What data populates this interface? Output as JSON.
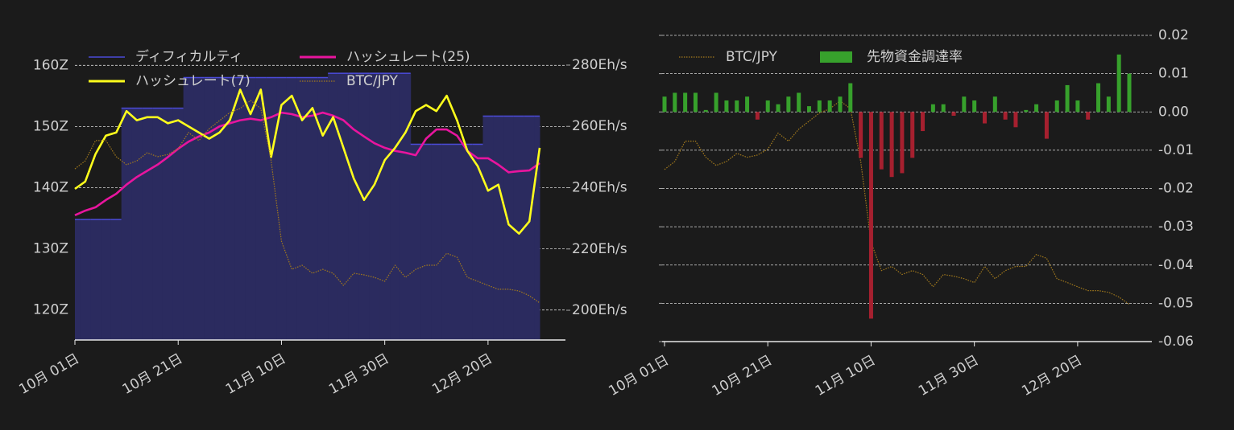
{
  "chart_data": [
    {
      "type": "line",
      "y_axis_side": "left",
      "grid": true,
      "x": [
        "10-01",
        "10-03",
        "10-05",
        "10-07",
        "10-09",
        "10-11",
        "10-13",
        "10-15",
        "10-17",
        "10-19",
        "10-21",
        "10-23",
        "10-25",
        "10-27",
        "10-29",
        "10-31",
        "11-02",
        "11-04",
        "11-06",
        "11-08",
        "11-10",
        "11-12",
        "11-14",
        "11-16",
        "11-18",
        "11-20",
        "11-22",
        "11-24",
        "11-26",
        "11-28",
        "11-30",
        "12-02",
        "12-04",
        "12-06",
        "12-08",
        "12-10",
        "12-12",
        "12-14",
        "12-16",
        "12-18",
        "12-20",
        "12-22",
        "12-24",
        "12-26",
        "12-28",
        "12-30"
      ],
      "xticks": [
        {
          "value": "10-01",
          "label": "10月 01日"
        },
        {
          "value": "10-21",
          "label": "10月 21日"
        },
        {
          "value": "11-10",
          "label": "11月 10日"
        },
        {
          "value": "11-30",
          "label": "11月 30日"
        },
        {
          "value": "12-20",
          "label": "12月 20日"
        }
      ],
      "ylim": [
        115.1,
        164.9
      ],
      "yticks": [
        {
          "value": 120,
          "label": "120Z"
        },
        {
          "value": 130,
          "label": "130Z"
        },
        {
          "value": 140,
          "label": "140Z"
        },
        {
          "value": 150,
          "label": "150Z"
        },
        {
          "value": 160,
          "label": "160Z"
        }
      ],
      "y2lim": [
        190.3,
        289.7
      ],
      "y2ticks": [
        {
          "value": 200,
          "label": "200Eh/s"
        },
        {
          "value": 220,
          "label": "220Eh/s"
        },
        {
          "value": 240,
          "label": "240Eh/s"
        },
        {
          "value": 260,
          "label": "260Eh/s"
        },
        {
          "value": 280,
          "label": "280Eh/s"
        }
      ],
      "y3lim": [
        2000000,
        3100000
      ],
      "series": [
        {
          "name": "ディフィカルティ",
          "type": "step-area",
          "axis": "y",
          "color": "#4b4bd8",
          "fill": "#2b2b5f",
          "values": [
            134.8,
            134.8,
            134.8,
            134.8,
            134.8,
            153,
            153,
            153,
            153,
            153,
            153,
            158,
            158,
            158,
            158,
            158,
            158,
            158,
            158,
            158,
            158,
            158,
            158,
            158,
            158,
            158.7,
            158.7,
            158.7,
            158.7,
            158.7,
            158.7,
            158.7,
            158.7,
            147.1,
            147.1,
            147.1,
            147.1,
            147.1,
            147.1,
            147.1,
            151.7,
            151.7,
            151.7,
            151.7,
            151.7,
            151.7
          ]
        },
        {
          "name": "ハッシュレート(25)",
          "type": "line",
          "axis": "y2",
          "color": "#e8159e",
          "values": [
            231,
            232.5,
            233.6,
            236,
            238,
            241,
            243.5,
            245.5,
            247.5,
            250,
            252.7,
            255,
            256.7,
            258,
            260,
            261,
            262,
            262.5,
            262,
            263,
            264.5,
            264,
            263,
            263.5,
            264.5,
            263.5,
            262,
            259,
            256.7,
            254.5,
            253,
            252,
            251.4,
            250.6,
            256,
            259,
            259,
            257,
            252,
            249.6,
            249.6,
            247.5,
            245,
            245.4,
            245.6,
            248
          ]
        },
        {
          "name": "ハッシュレート(7)",
          "type": "line",
          "axis": "y2",
          "color": "#ffff1c",
          "values": [
            239.6,
            242,
            251,
            257,
            258,
            265,
            262,
            263,
            263,
            261,
            262,
            260,
            258,
            256,
            258,
            262,
            272,
            264,
            272,
            250,
            267,
            270,
            262,
            266,
            257,
            263,
            253,
            243,
            236,
            241,
            249,
            253,
            258,
            265,
            267,
            265,
            270,
            262,
            252,
            247,
            239,
            241,
            228,
            225,
            229,
            253
          ]
        },
        {
          "name": "BTC/JPY",
          "type": "line",
          "axis": "y3",
          "color": "#a37a1c",
          "dashed": true,
          "values": [
            2618000,
            2647000,
            2720000,
            2720000,
            2662000,
            2633000,
            2647000,
            2676000,
            2662000,
            2670000,
            2691000,
            2749000,
            2720000,
            2763000,
            2792000,
            2821000,
            2836000,
            2865000,
            2836000,
            2647000,
            2357000,
            2255000,
            2270000,
            2241000,
            2255000,
            2241000,
            2197000,
            2241000,
            2235000,
            2226000,
            2212000,
            2270000,
            2226000,
            2255000,
            2270000,
            2270000,
            2313000,
            2299000,
            2226000,
            2212000,
            2197000,
            2183000,
            2183000,
            2177000,
            2160000,
            2134000
          ]
        }
      ]
    },
    {
      "type": "bar",
      "y_axis_side": "right",
      "grid": true,
      "x": [
        "10-01",
        "10-03",
        "10-05",
        "10-07",
        "10-09",
        "10-11",
        "10-13",
        "10-15",
        "10-17",
        "10-19",
        "10-21",
        "10-23",
        "10-25",
        "10-27",
        "10-29",
        "10-31",
        "11-02",
        "11-04",
        "11-06",
        "11-08",
        "11-10",
        "11-12",
        "11-14",
        "11-16",
        "11-18",
        "11-20",
        "11-22",
        "11-24",
        "11-26",
        "11-28",
        "11-30",
        "12-02",
        "12-04",
        "12-06",
        "12-08",
        "12-10",
        "12-12",
        "12-14",
        "12-16",
        "12-18",
        "12-20",
        "12-22",
        "12-24",
        "12-26",
        "12-28",
        "12-30"
      ],
      "xticks": [
        {
          "value": "10-01",
          "label": "10月 01日"
        },
        {
          "value": "10-21",
          "label": "10月 21日"
        },
        {
          "value": "11-10",
          "label": "11月 10日"
        },
        {
          "value": "11-30",
          "label": "11月 30日"
        },
        {
          "value": "12-20",
          "label": "12月 20日"
        }
      ],
      "ylim": [
        -0.06,
        0.02
      ],
      "yticks": [
        0.02,
        0.01,
        {
          "value": 0,
          "label": "0.00"
        },
        -0.01,
        -0.02,
        -0.03,
        -0.04,
        -0.05,
        -0.06
      ],
      "y3lim": [
        2000000,
        3100000
      ],
      "series": [
        {
          "name": "BTC/JPY",
          "type": "line",
          "axis": "y3",
          "color": "#a37a1c",
          "dashed": true,
          "values": [
            2618000,
            2647000,
            2720000,
            2720000,
            2662000,
            2633000,
            2647000,
            2676000,
            2662000,
            2670000,
            2691000,
            2749000,
            2720000,
            2763000,
            2792000,
            2821000,
            2836000,
            2865000,
            2836000,
            2647000,
            2357000,
            2255000,
            2270000,
            2241000,
            2255000,
            2241000,
            2197000,
            2241000,
            2235000,
            2226000,
            2212000,
            2270000,
            2226000,
            2255000,
            2270000,
            2270000,
            2313000,
            2299000,
            2226000,
            2212000,
            2197000,
            2183000,
            2183000,
            2177000,
            2160000,
            2134000
          ]
        },
        {
          "name": "先物資金調達率",
          "type": "bar",
          "axis": "y",
          "color": "#37a12c",
          "negative_color": "#a6202f",
          "values": [
            0.004,
            0.005,
            0.005,
            0.005,
            0.0005,
            0.005,
            0.003,
            0.003,
            0.004,
            -0.002,
            0.003,
            0.002,
            0.004,
            0.005,
            0.0015,
            0.003,
            0.003,
            0.004,
            0.0075,
            -0.012,
            -0.054,
            -0.015,
            -0.017,
            -0.016,
            -0.012,
            -0.005,
            0.002,
            0.002,
            -0.001,
            0.004,
            0.003,
            -0.003,
            0.004,
            -0.002,
            -0.004,
            0.0005,
            0.002,
            -0.007,
            0.003,
            0.007,
            0.003,
            -0.002,
            0.0075,
            0.004,
            0.015,
            0.01
          ]
        }
      ]
    }
  ]
}
